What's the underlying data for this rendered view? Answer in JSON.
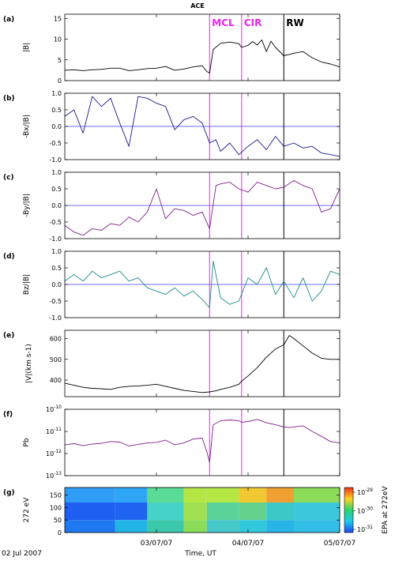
{
  "figure": {
    "title": "ACE",
    "start_date_label": "02 Jul 2007",
    "xlabel": "Time, UT",
    "x_ticks": [
      "03/07/07",
      "04/07/07",
      "05/07/07"
    ],
    "x_range_days": [
      2.0,
      5.0
    ],
    "x_tick_values_days": [
      3.0,
      4.0,
      5.0
    ],
    "event_lines": [
      {
        "label": "MCL",
        "x_day": 3.58,
        "color": "#ee22ee"
      },
      {
        "label": "CIR",
        "x_day": 3.93,
        "color": "#ee22ee"
      },
      {
        "label": "RW",
        "x_day": 4.39,
        "color": "#000000"
      }
    ]
  },
  "chart_data": [
    {
      "type": "line",
      "panel": "(a)",
      "ylabel": "|B|",
      "ylim": [
        0,
        16
      ],
      "yticks": [
        0,
        5,
        10,
        15
      ],
      "color": "#000000",
      "series": [
        {
          "x": [
            2.0,
            2.1,
            2.2,
            2.3,
            2.4,
            2.5,
            2.6,
            2.7,
            2.8,
            2.9,
            3.0,
            3.1,
            3.2,
            3.3,
            3.4,
            3.5,
            3.55,
            3.58,
            3.62,
            3.7,
            3.8,
            3.9,
            3.93,
            4.0,
            4.05,
            4.1,
            4.15,
            4.2,
            4.25,
            4.3,
            4.39,
            4.45,
            4.5,
            4.6,
            4.7,
            4.8,
            4.9,
            5.0
          ],
          "y": [
            2.5,
            2.6,
            2.4,
            2.6,
            2.7,
            3.0,
            3.0,
            2.4,
            2.6,
            2.9,
            3.0,
            3.4,
            2.5,
            2.8,
            3.3,
            3.6,
            2.2,
            1.8,
            7.5,
            9.0,
            9.3,
            8.9,
            8.0,
            8.5,
            9.4,
            8.6,
            9.8,
            7.0,
            9.5,
            8.0,
            6.0,
            6.3,
            6.6,
            7.0,
            5.5,
            4.5,
            4.0,
            3.3
          ]
        }
      ]
    },
    {
      "type": "line",
      "panel": "(b)",
      "ylabel": "-Bx/|B|",
      "ylim": [
        -1,
        1
      ],
      "yticks": [
        -1.0,
        -0.5,
        0.0,
        0.5,
        1.0
      ],
      "reference_line": 0.0,
      "color": "#1a1a8c",
      "series": [
        {
          "x": [
            2.0,
            2.1,
            2.2,
            2.3,
            2.4,
            2.5,
            2.6,
            2.7,
            2.8,
            2.9,
            3.0,
            3.1,
            3.2,
            3.3,
            3.4,
            3.5,
            3.58,
            3.65,
            3.7,
            3.8,
            3.9,
            4.0,
            4.1,
            4.2,
            4.3,
            4.39,
            4.5,
            4.6,
            4.7,
            4.8,
            4.9,
            5.0
          ],
          "y": [
            0.3,
            0.5,
            -0.2,
            0.9,
            0.6,
            0.85,
            0.1,
            -0.6,
            0.9,
            0.85,
            0.7,
            0.6,
            -0.1,
            0.2,
            0.3,
            0.1,
            -0.5,
            -0.4,
            -0.75,
            -0.5,
            -0.85,
            -0.6,
            -0.4,
            -0.7,
            -0.3,
            -0.6,
            -0.5,
            -0.65,
            -0.6,
            -0.8,
            -0.85,
            -0.9
          ]
        }
      ]
    },
    {
      "type": "line",
      "panel": "(c)",
      "ylabel": "-By/|B|",
      "ylim": [
        -1,
        1
      ],
      "yticks": [
        -1.0,
        -0.5,
        0.0,
        0.5,
        1.0
      ],
      "reference_line": 0.0,
      "color": "#7f1f8a",
      "series": [
        {
          "x": [
            2.0,
            2.1,
            2.2,
            2.3,
            2.4,
            2.5,
            2.6,
            2.7,
            2.8,
            2.9,
            3.0,
            3.1,
            3.2,
            3.3,
            3.4,
            3.5,
            3.58,
            3.65,
            3.7,
            3.8,
            3.9,
            4.0,
            4.1,
            4.2,
            4.3,
            4.39,
            4.5,
            4.6,
            4.7,
            4.8,
            4.9,
            5.0
          ],
          "y": [
            -0.6,
            -0.8,
            -0.9,
            -0.7,
            -0.75,
            -0.55,
            -0.6,
            -0.35,
            -0.5,
            -0.2,
            0.5,
            -0.4,
            -0.1,
            -0.15,
            -0.3,
            -0.2,
            -0.7,
            0.6,
            0.65,
            0.7,
            0.5,
            0.4,
            0.7,
            0.6,
            0.5,
            0.55,
            0.75,
            0.6,
            0.5,
            -0.2,
            -0.1,
            0.5
          ]
        }
      ]
    },
    {
      "type": "line",
      "panel": "(d)",
      "ylabel": "Bz/|B|",
      "ylim": [
        -1,
        1
      ],
      "yticks": [
        -1.0,
        -0.5,
        0.0,
        0.5,
        1.0
      ],
      "reference_line": 0.0,
      "color": "#1e8a8a",
      "series": [
        {
          "x": [
            2.0,
            2.1,
            2.2,
            2.3,
            2.4,
            2.5,
            2.6,
            2.7,
            2.8,
            2.9,
            3.0,
            3.1,
            3.2,
            3.3,
            3.4,
            3.5,
            3.58,
            3.62,
            3.7,
            3.8,
            3.9,
            4.0,
            4.1,
            4.2,
            4.3,
            4.39,
            4.5,
            4.6,
            4.7,
            4.8,
            4.9,
            5.0
          ],
          "y": [
            0.1,
            0.3,
            0.1,
            0.4,
            0.2,
            0.3,
            0.4,
            0.1,
            0.2,
            -0.1,
            -0.2,
            -0.3,
            -0.1,
            -0.35,
            -0.2,
            -0.45,
            -0.7,
            0.7,
            -0.4,
            -0.6,
            -0.5,
            0.2,
            0.0,
            0.5,
            -0.3,
            0.1,
            -0.4,
            0.2,
            -0.5,
            -0.2,
            0.4,
            0.3
          ]
        }
      ]
    },
    {
      "type": "line",
      "panel": "(e)",
      "ylabel": "|V|(km s-1)",
      "ylim": [
        320,
        640
      ],
      "yticks": [
        400,
        500,
        600
      ],
      "color": "#000000",
      "series": [
        {
          "x": [
            2.0,
            2.1,
            2.2,
            2.3,
            2.4,
            2.5,
            2.6,
            2.7,
            2.8,
            2.9,
            3.0,
            3.1,
            3.2,
            3.3,
            3.4,
            3.5,
            3.58,
            3.65,
            3.7,
            3.8,
            3.9,
            3.93,
            4.0,
            4.1,
            4.2,
            4.3,
            4.39,
            4.45,
            4.5,
            4.6,
            4.7,
            4.8,
            4.9,
            5.0
          ],
          "y": [
            385,
            375,
            365,
            360,
            358,
            355,
            365,
            370,
            372,
            375,
            380,
            370,
            360,
            350,
            345,
            340,
            343,
            348,
            355,
            365,
            380,
            395,
            420,
            460,
            510,
            550,
            570,
            615,
            600,
            565,
            530,
            505,
            500,
            500
          ]
        }
      ]
    },
    {
      "type": "line",
      "panel": "(f)",
      "ylabel": "Pb",
      "yscale": "log",
      "ylim": [
        1e-13,
        1e-10
      ],
      "yticks": [
        "10^-13",
        "10^-12",
        "10^-11",
        "10^-10"
      ],
      "color": "#7f1f8a",
      "series": [
        {
          "x": [
            2.0,
            2.1,
            2.2,
            2.3,
            2.4,
            2.5,
            2.6,
            2.7,
            2.8,
            2.9,
            3.0,
            3.1,
            3.2,
            3.3,
            3.4,
            3.5,
            3.55,
            3.58,
            3.62,
            3.7,
            3.8,
            3.9,
            3.93,
            4.0,
            4.1,
            4.2,
            4.3,
            4.39,
            4.45,
            4.5,
            4.6,
            4.7,
            4.8,
            4.9,
            5.0
          ],
          "y": [
            2.5e-12,
            2.8e-12,
            2.3e-12,
            2.7e-12,
            2.9e-12,
            3.5e-12,
            3.3e-12,
            2.2e-12,
            2.6e-12,
            3e-12,
            3.2e-12,
            4e-12,
            2.5e-12,
            3e-12,
            4.5e-12,
            5e-12,
            1.2e-12,
            4e-13,
            2e-11,
            3e-11,
            3.3e-11,
            3e-11,
            2.6e-11,
            2.8e-11,
            3.5e-11,
            2.5e-11,
            2e-11,
            1.6e-11,
            1.5e-11,
            1.6e-11,
            1.8e-11,
            1e-11,
            6e-12,
            3.5e-12,
            3e-12
          ]
        }
      ]
    },
    {
      "type": "heatmap",
      "panel": "(g)",
      "ylabel": "272 eV",
      "ylim": [
        0,
        180
      ],
      "yticks": [
        0,
        50,
        100,
        150
      ],
      "colorbar": {
        "label": "EPA at 272eV",
        "ticks": [
          "10^-29",
          "10^-30",
          "10^-31"
        ],
        "colors": [
          "#e8321e",
          "#ffd21e",
          "#2dd46e",
          "#1ecbe8",
          "#1e46f0"
        ]
      },
      "time_segments": [
        {
          "x": [
            2.0,
            2.55
          ],
          "bottom": "#1e78f0",
          "middle": "#1e5ef0",
          "top": "#2f9cf5"
        },
        {
          "x": [
            2.55,
            2.9
          ],
          "bottom": "#23b4e6",
          "middle": "#1e64f0",
          "top": "#2fa6f5"
        },
        {
          "x": [
            2.9,
            3.3
          ],
          "bottom": "#3cc8aa",
          "middle": "#46d2c8",
          "top": "#5adc96"
        },
        {
          "x": [
            3.3,
            3.55
          ],
          "bottom": "#8cdc5a",
          "middle": "#a0e050",
          "top": "#b4e646"
        },
        {
          "x": [
            3.55,
            3.9
          ],
          "bottom": "#46c8c8",
          "middle": "#5ad29a",
          "top": "#b4e646"
        },
        {
          "x": [
            3.9,
            4.2
          ],
          "bottom": "#32c8dc",
          "middle": "#64d28c",
          "top": "#f0c832"
        },
        {
          "x": [
            4.2,
            4.5
          ],
          "bottom": "#28b4e6",
          "middle": "#3cc8c8",
          "top": "#f0a032"
        },
        {
          "x": [
            4.5,
            5.0
          ],
          "bottom": "#32bee6",
          "middle": "#3cc8dc",
          "top": "#8cdc5a"
        }
      ]
    }
  ]
}
